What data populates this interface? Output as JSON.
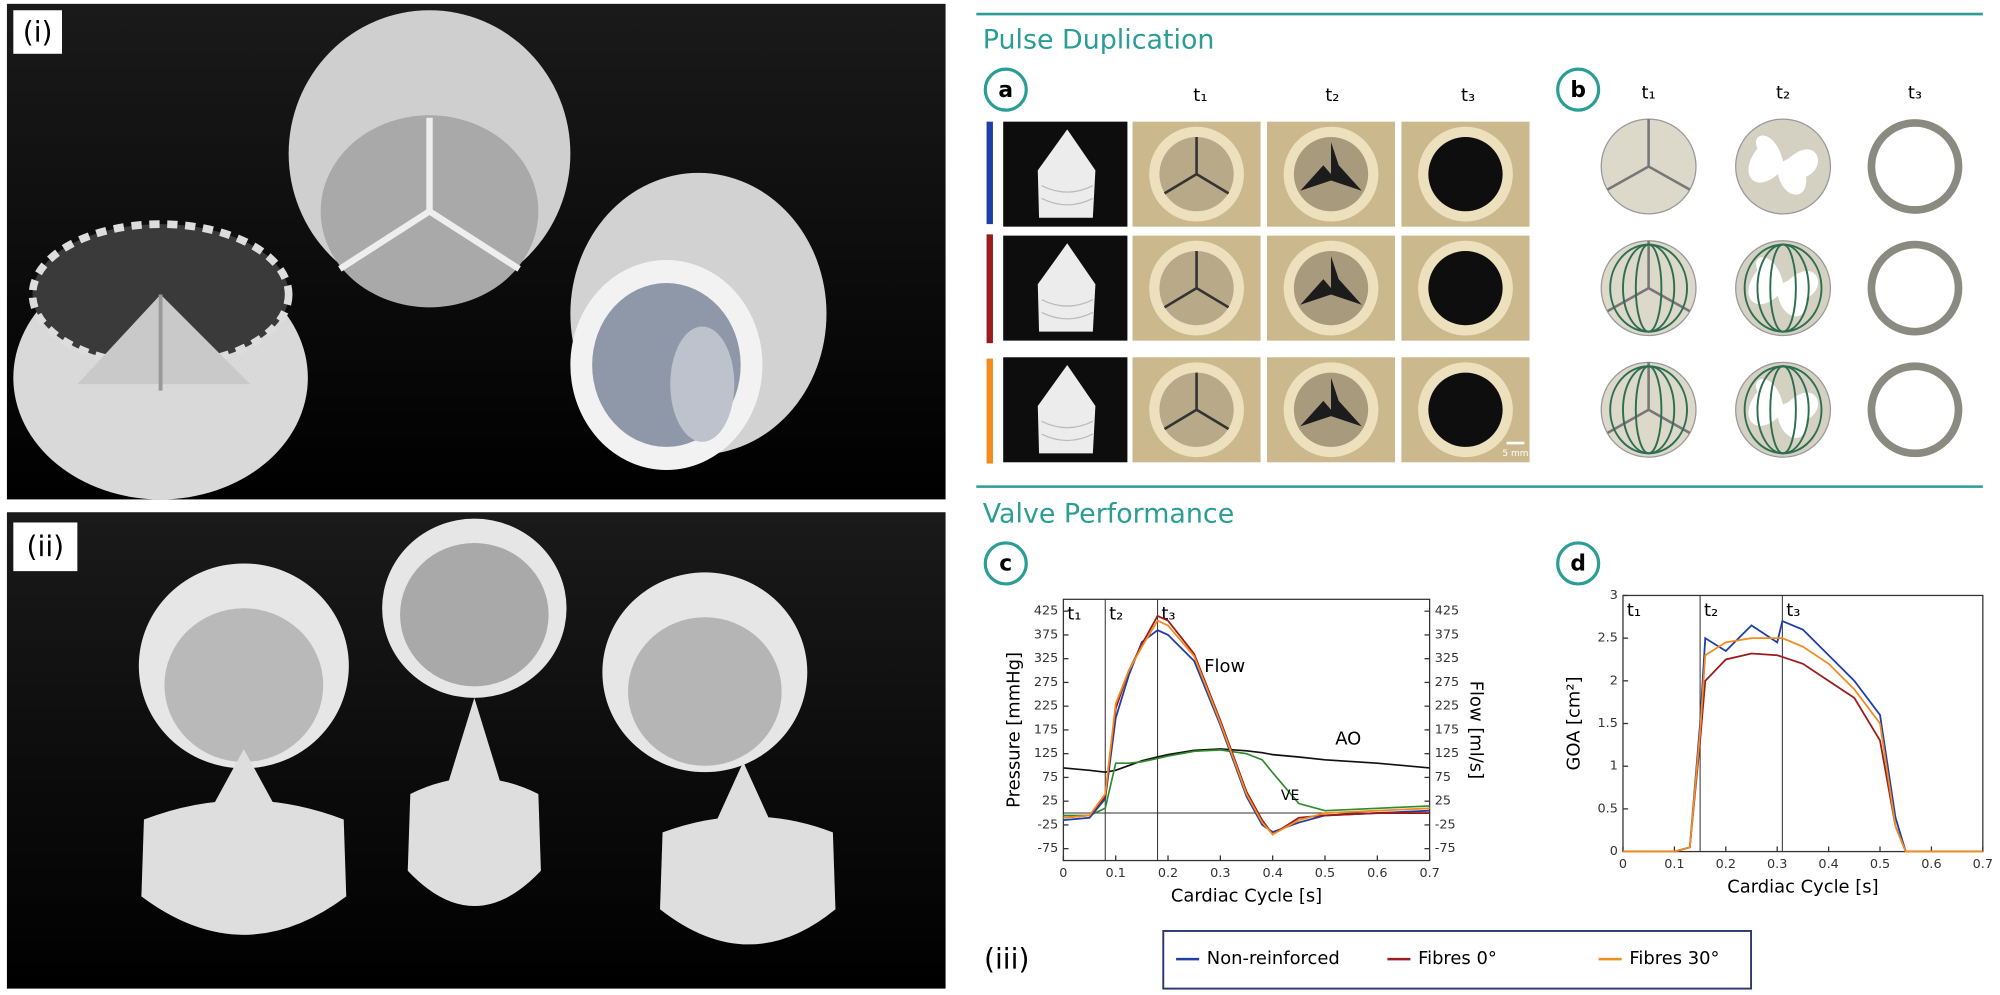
{
  "figure": {
    "panel_i": "(i)",
    "panel_ii": "(ii)",
    "panel_iii": "(iii)",
    "pulse_duplication": {
      "title": "Pulse Duplication",
      "panel_a": {
        "label": "a",
        "columns": [
          "t₁",
          "t₂",
          "t₃"
        ],
        "scale_bar": "5 mm"
      },
      "panel_b": {
        "label": "b",
        "columns": [
          "t₁",
          "t₂",
          "t₃"
        ]
      }
    },
    "valve_performance": {
      "title": "Valve Performance",
      "panel_c": "c",
      "panel_d": "d"
    }
  },
  "chart_data": [
    {
      "type": "line",
      "xlabel": "Cardiac Cycle [s]",
      "ylabel": "Pressure [mmHg]",
      "y2label": "Flow [ml/s]",
      "annotations": [
        "Flow"
      ],
      "legend": "bottom",
      "zero_line": true,
      "x": [
        0,
        0.05,
        0.08,
        0.1,
        0.125,
        0.15,
        0.18,
        0.2,
        0.25,
        0.3,
        0.35,
        0.38,
        0.4,
        0.45,
        0.5,
        0.6,
        0.7
      ],
      "xlim": [
        0,
        0.7
      ],
      "xticks": [
        0,
        0.1,
        0.2,
        0.3,
        0.4,
        0.5,
        0.6,
        0.7
      ],
      "ylim": [
        -100,
        450
      ],
      "yticks": [
        -75,
        -25,
        25,
        75,
        125,
        175,
        225,
        275,
        325,
        375,
        425
      ],
      "y2lim": [
        -100,
        450
      ],
      "y2ticks": [
        -75,
        -25,
        25,
        75,
        125,
        175,
        225,
        275,
        325,
        375,
        425
      ],
      "time_markers": [
        {
          "label": "t₁",
          "x": 0
        },
        {
          "label": "t₂",
          "x": 0.08
        },
        {
          "label": "t₃",
          "x": 0.18
        }
      ],
      "series": [
        {
          "name": "Non-reinforced",
          "color": "#1f3fa8",
          "axis": "y2",
          "values": [
            -15,
            -10,
            30,
            200,
            290,
            360,
            385,
            375,
            320,
            185,
            35,
            -25,
            -40,
            -20,
            -5,
            0,
            5
          ]
        },
        {
          "name": "Fibres 0°",
          "color": "#9b1c1c",
          "axis": "y2",
          "values": [
            -10,
            -5,
            35,
            220,
            300,
            355,
            415,
            405,
            335,
            195,
            45,
            -15,
            -45,
            -10,
            -5,
            0,
            0
          ]
        },
        {
          "name": "Fibres 30°",
          "color": "#f28c1e",
          "axis": "y2",
          "values": [
            -10,
            -5,
            40,
            230,
            300,
            350,
            405,
            395,
            330,
            190,
            40,
            -20,
            -45,
            -15,
            0,
            5,
            10
          ]
        }
      ],
      "pressure_curves": [
        {
          "name": "AO",
          "color": "#111111",
          "values": [
            95,
            90,
            86,
            90,
            100,
            110,
            118,
            123,
            132,
            135,
            131,
            127,
            123,
            118,
            112,
            105,
            95
          ]
        },
        {
          "name": "VE",
          "color": "#2e8b2e",
          "values": [
            -5,
            -5,
            10,
            105,
            105,
            108,
            115,
            120,
            130,
            133,
            125,
            112,
            85,
            20,
            5,
            10,
            15
          ]
        }
      ]
    },
    {
      "type": "line",
      "xlabel": "Cardiac Cycle [s]",
      "ylabel": "GOA [cm²]",
      "x": [
        0,
        0.1,
        0.13,
        0.15,
        0.16,
        0.2,
        0.25,
        0.3,
        0.31,
        0.35,
        0.4,
        0.45,
        0.5,
        0.53,
        0.55,
        0.6,
        0.7
      ],
      "xlim": [
        0,
        0.7
      ],
      "xticks": [
        0,
        0.1,
        0.2,
        0.3,
        0.4,
        0.5,
        0.6,
        0.7
      ],
      "ylim": [
        0,
        3
      ],
      "yticks": [
        0,
        0.5,
        1,
        1.5,
        2,
        2.5,
        3
      ],
      "time_markers": [
        {
          "label": "t₁",
          "x": 0
        },
        {
          "label": "t₂",
          "x": 0.15
        },
        {
          "label": "t₃",
          "x": 0.31
        }
      ],
      "series": [
        {
          "color": "#1f3fa8",
          "values": [
            0,
            0,
            0.05,
            1.5,
            2.5,
            2.35,
            2.65,
            2.45,
            2.7,
            2.6,
            2.3,
            2.0,
            1.6,
            0.4,
            0,
            0,
            0
          ]
        },
        {
          "color": "#9b1c1c",
          "values": [
            0,
            0,
            0.05,
            1.3,
            2.0,
            2.25,
            2.32,
            2.3,
            2.28,
            2.2,
            2.0,
            1.8,
            1.3,
            0.3,
            0,
            0,
            0
          ]
        },
        {
          "color": "#f28c1e",
          "values": [
            0,
            0,
            0.05,
            1.4,
            2.3,
            2.45,
            2.5,
            2.5,
            2.5,
            2.4,
            2.2,
            1.9,
            1.5,
            0.3,
            0,
            0,
            0
          ]
        }
      ]
    }
  ]
}
